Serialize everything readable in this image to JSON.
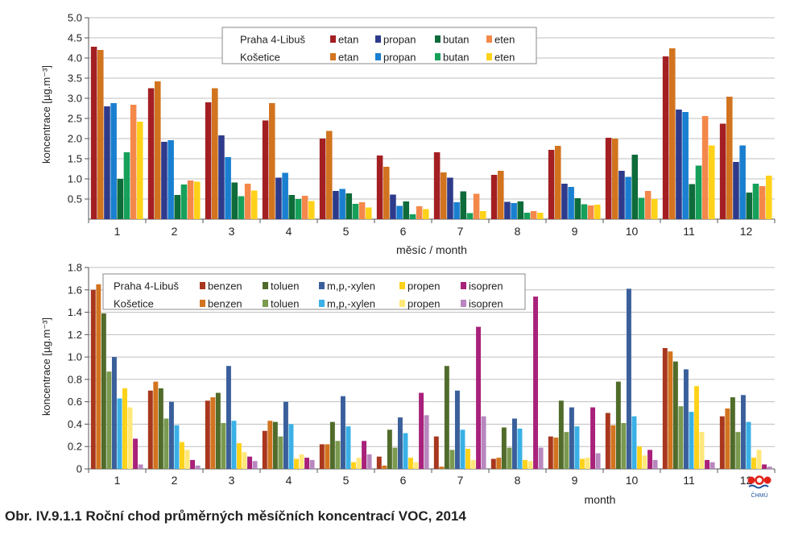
{
  "caption": "Obr. IV.9.1.1 Roční chod průměrných měsíčních koncentrací VOC, 2014",
  "logo_text": "ČHMÚ",
  "chart_data": [
    {
      "type": "bar",
      "ylabel": "koncentrace [µg.m⁻³]",
      "xlabel": "měsíc / month",
      "ylim": [
        0,
        5.0
      ],
      "y_ticks": [
        "5.0",
        "4.5",
        "4.0",
        "3.5",
        "3.0",
        "2.5",
        "2.0",
        "1.5",
        "1.0",
        "0.5"
      ],
      "categories": [
        "1",
        "2",
        "3",
        "4",
        "5",
        "6",
        "7",
        "8",
        "9",
        "10",
        "11",
        "12"
      ],
      "grid": true,
      "legend_position": "top-center",
      "legend_rows": [
        "Praha 4-Libuš",
        "Košetice"
      ],
      "series": [
        {
          "name": "etan",
          "station": "Praha 4-Libuš",
          "color": "#a31f22",
          "values": [
            4.28,
            3.25,
            2.9,
            2.45,
            2.0,
            1.58,
            1.66,
            1.1,
            1.72,
            2.02,
            4.04,
            2.37
          ]
        },
        {
          "name": "etan",
          "station": "Košetice",
          "color": "#d2741f",
          "values": [
            4.2,
            3.42,
            3.25,
            2.88,
            2.19,
            1.3,
            1.16,
            1.2,
            1.82,
            2.0,
            4.24,
            3.04
          ]
        },
        {
          "name": "propan",
          "station": "Praha 4-Libuš",
          "color": "#2e3b8c",
          "values": [
            2.8,
            1.92,
            2.08,
            1.03,
            0.7,
            0.61,
            1.03,
            0.43,
            0.88,
            1.2,
            2.72,
            1.42
          ]
        },
        {
          "name": "propan",
          "station": "Košetice",
          "color": "#1a7fd0",
          "values": [
            2.88,
            1.96,
            1.54,
            1.15,
            0.75,
            0.33,
            0.42,
            0.4,
            0.8,
            1.05,
            2.66,
            1.83
          ]
        },
        {
          "name": "butan",
          "station": "Praha 4-Libuš",
          "color": "#0e6b3a",
          "values": [
            1.0,
            0.6,
            0.91,
            0.6,
            0.64,
            0.44,
            0.69,
            0.44,
            0.52,
            1.6,
            0.87,
            0.66
          ]
        },
        {
          "name": "butan",
          "station": "Košetice",
          "color": "#16a05a",
          "values": [
            1.66,
            0.86,
            0.57,
            0.5,
            0.38,
            0.12,
            0.15,
            0.16,
            0.37,
            0.53,
            1.33,
            0.88
          ]
        },
        {
          "name": "eten",
          "station": "Praha 4-Libuš",
          "color": "#f4884a",
          "values": [
            2.84,
            0.96,
            0.88,
            0.58,
            0.42,
            0.32,
            0.63,
            0.2,
            0.34,
            0.7,
            2.56,
            0.82
          ]
        },
        {
          "name": "eten",
          "station": "Košetice",
          "color": "#ffd21a",
          "values": [
            2.42,
            0.93,
            0.71,
            0.45,
            0.29,
            0.25,
            0.2,
            0.16,
            0.36,
            0.5,
            1.83,
            1.08
          ]
        }
      ]
    },
    {
      "type": "bar",
      "ylabel": "koncentrace [µg.m⁻³]",
      "xlabel": "month",
      "ylim": [
        0,
        1.8
      ],
      "y_ticks": [
        "1.8",
        "1.6",
        "1.4",
        "1.2",
        "1.0",
        "0.8",
        "0.6",
        "0.4",
        "0.2",
        "0"
      ],
      "categories": [
        "1",
        "2",
        "3",
        "4",
        "5",
        "6",
        "7",
        "8",
        "9",
        "10",
        "11",
        "12"
      ],
      "grid": true,
      "legend_position": "top-left",
      "legend_rows": [
        "Praha 4-Libuš",
        "Košetice"
      ],
      "series": [
        {
          "name": "benzen",
          "station": "Praha 4-Libuš",
          "color": "#a8371e",
          "values": [
            1.6,
            0.7,
            0.61,
            0.34,
            0.22,
            0.11,
            0.29,
            0.09,
            0.29,
            0.5,
            1.08,
            0.47
          ]
        },
        {
          "name": "benzen",
          "station": "Košetice",
          "color": "#d2741f",
          "values": [
            1.65,
            0.78,
            0.64,
            0.43,
            0.22,
            0.03,
            0.02,
            0.1,
            0.28,
            0.39,
            1.05,
            0.54
          ]
        },
        {
          "name": "toluen",
          "station": "Praha 4-Libuš",
          "color": "#506b2a",
          "values": [
            1.39,
            0.72,
            0.68,
            0.42,
            0.42,
            0.35,
            0.92,
            0.37,
            0.61,
            0.78,
            0.96,
            0.64
          ]
        },
        {
          "name": "toluen",
          "station": "Košetice",
          "color": "#7a9a50",
          "values": [
            0.87,
            0.45,
            0.41,
            0.29,
            0.25,
            0.19,
            0.17,
            0.19,
            0.33,
            0.41,
            0.56,
            0.33
          ]
        },
        {
          "name": "m,p,-xylen",
          "station": "Praha 4-Libuš",
          "color": "#3a5f9b",
          "values": [
            1.0,
            0.6,
            0.92,
            0.6,
            0.65,
            0.46,
            0.7,
            0.45,
            0.55,
            1.61,
            0.89,
            0.66
          ]
        },
        {
          "name": "m,p,-xylen",
          "station": "Košetice",
          "color": "#3ab0e6",
          "values": [
            0.63,
            0.39,
            0.43,
            0.4,
            0.38,
            0.32,
            0.35,
            0.36,
            0.38,
            0.47,
            0.51,
            0.42
          ]
        },
        {
          "name": "propen",
          "station": "Praha 4-Libuš",
          "color": "#ffd21a",
          "values": [
            0.72,
            0.24,
            0.23,
            0.09,
            0.06,
            0.1,
            0.18,
            0.08,
            0.09,
            0.2,
            0.74,
            0.1
          ]
        },
        {
          "name": "propen",
          "station": "Košetice",
          "color": "#ffe87a",
          "values": [
            0.55,
            0.17,
            0.15,
            0.13,
            0.1,
            0.06,
            0.08,
            0.07,
            0.1,
            0.12,
            0.33,
            0.17
          ]
        },
        {
          "name": "isopren",
          "station": "Praha 4-Libuš",
          "color": "#a8217a",
          "values": [
            0.27,
            0.08,
            0.11,
            0.1,
            0.25,
            0.68,
            1.27,
            1.54,
            0.55,
            0.17,
            0.08,
            0.04
          ]
        },
        {
          "name": "isopren",
          "station": "Košetice",
          "color": "#b887bf",
          "values": [
            0.04,
            0.03,
            0.07,
            0.08,
            0.13,
            0.48,
            0.47,
            0.19,
            0.14,
            0.08,
            0.06,
            0.02
          ]
        }
      ]
    }
  ]
}
